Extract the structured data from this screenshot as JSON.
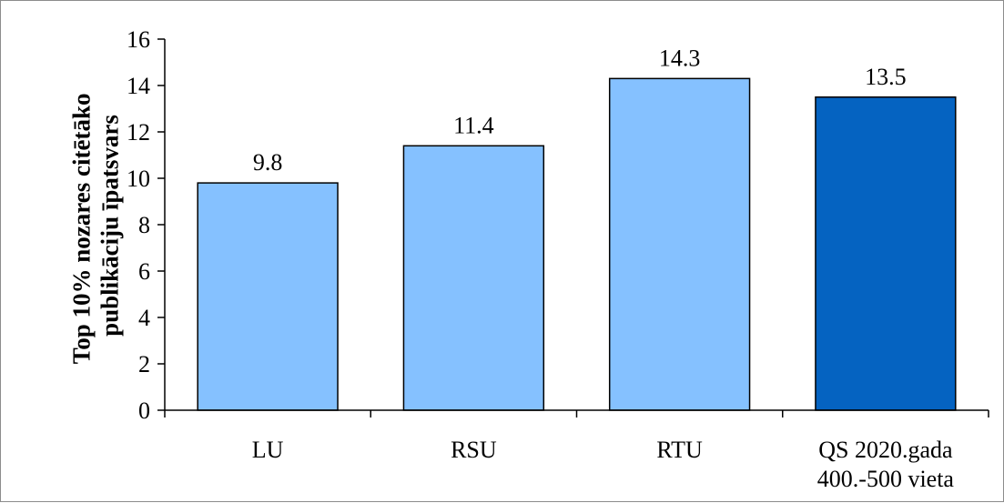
{
  "chart_data": {
    "type": "bar",
    "title": "",
    "xlabel": "",
    "ylabel_lines": [
      "Top 10% nozares citētāko",
      "publikāciju īpatsvars"
    ],
    "categories": [
      [
        "LU"
      ],
      [
        "RSU"
      ],
      [
        "RTU"
      ],
      [
        "QS 2020.gada",
        "400.-500 vieta"
      ]
    ],
    "values": [
      9.8,
      11.4,
      14.3,
      13.5
    ],
    "value_labels": [
      "9.8",
      "11.4",
      "14.3",
      "13.5"
    ],
    "bar_colors": [
      "#85c1ff",
      "#85c1ff",
      "#85c1ff",
      "#0563c1"
    ],
    "ylim": [
      0,
      16
    ],
    "yticks": [
      0,
      2,
      4,
      6,
      8,
      10,
      12,
      14,
      16
    ],
    "grid": false,
    "legend": "none"
  }
}
